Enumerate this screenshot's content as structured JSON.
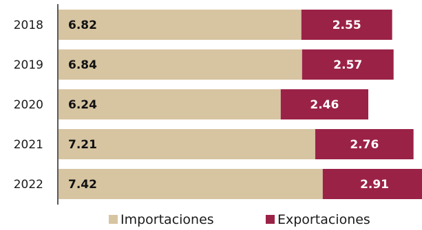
{
  "chart_data": {
    "type": "bar",
    "orientation": "horizontal",
    "stacked": true,
    "categories": [
      "2018",
      "2019",
      "2020",
      "2021",
      "2022"
    ],
    "series": [
      {
        "name": "Importaciones",
        "values": [
          6.82,
          6.84,
          6.24,
          7.21,
          7.42
        ],
        "color": "#d7c4a1"
      },
      {
        "name": "Exportaciones",
        "values": [
          2.55,
          2.57,
          2.46,
          2.76,
          2.91
        ],
        "color": "#9b2247"
      }
    ],
    "title": "",
    "xlabel": "",
    "ylabel": "",
    "xlim": [
      0,
      10.15
    ],
    "grid": false,
    "legend_position": "bottom"
  }
}
